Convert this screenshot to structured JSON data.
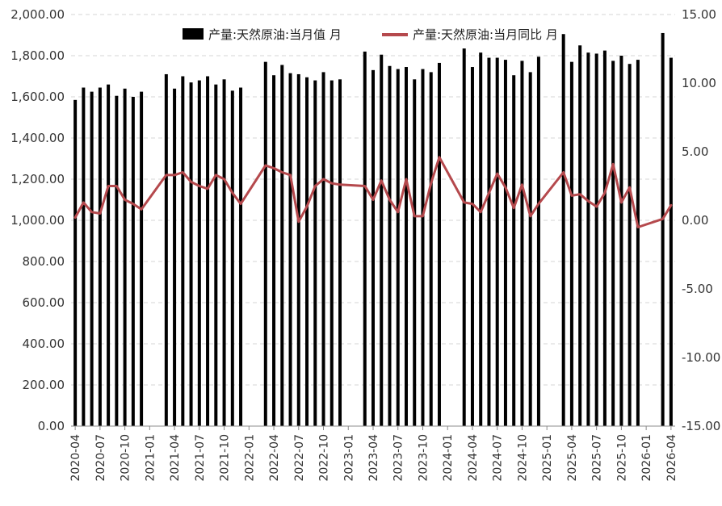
{
  "chart_data": {
    "type": "bar",
    "title": "",
    "legend_position": "top",
    "grid": true,
    "colors": {
      "bar": "#000000",
      "line": "#b5494d",
      "grid": "#d6d6d6"
    },
    "y_left": {
      "min": 0,
      "max": 2000,
      "ticks": [
        0,
        200,
        400,
        600,
        800,
        1000,
        1200,
        1400,
        1600,
        1800,
        2000
      ],
      "tick_labels": [
        "0.00",
        "200.00",
        "400.00",
        "600.00",
        "800.00",
        "1,000.00",
        "1,200.00",
        "1,400.00",
        "1,600.00",
        "1,800.00",
        "2,000.00"
      ]
    },
    "y_right": {
      "min": -15,
      "max": 15,
      "ticks": [
        -15,
        -10,
        -5,
        0,
        5,
        10,
        15
      ],
      "tick_labels": [
        "-15.00",
        "-10.00",
        "-5.00",
        "0.00",
        "5.00",
        "10.00",
        "15.00"
      ]
    },
    "x_tick_labels": [
      "2020-04",
      "2020-07",
      "2020-10",
      "2021-01",
      "2021-04",
      "2021-07",
      "2021-10",
      "2022-01",
      "2022-04",
      "2022-07",
      "2022-10",
      "2023-01",
      "2023-04",
      "2023-07",
      "2023-10",
      "2024-01",
      "2024-04",
      "2024-07",
      "2024-10",
      "2025-01",
      "2025-04",
      "2025-07",
      "2025-10",
      "2026-01",
      "2026-04"
    ],
    "categories": [
      "2020-04",
      "2020-05",
      "2020-06",
      "2020-07",
      "2020-08",
      "2020-09",
      "2020-10",
      "2020-11",
      "2020-12",
      "2021-01",
      "2021-02",
      "2021-03",
      "2021-04",
      "2021-05",
      "2021-06",
      "2021-07",
      "2021-08",
      "2021-09",
      "2021-10",
      "2021-11",
      "2021-12",
      "2022-01",
      "2022-02",
      "2022-03",
      "2022-04",
      "2022-05",
      "2022-06",
      "2022-07",
      "2022-08",
      "2022-09",
      "2022-10",
      "2022-11",
      "2022-12",
      "2023-01",
      "2023-02",
      "2023-03",
      "2023-04",
      "2023-05",
      "2023-06",
      "2023-07",
      "2023-08",
      "2023-09",
      "2023-10",
      "2023-11",
      "2023-12",
      "2024-01",
      "2024-02",
      "2024-03",
      "2024-04",
      "2024-05",
      "2024-06",
      "2024-07",
      "2024-08",
      "2024-09",
      "2024-10",
      "2024-11",
      "2024-12",
      "2025-01",
      "2025-02",
      "2025-03",
      "2025-04",
      "2025-05",
      "2025-06",
      "2025-07",
      "2025-08",
      "2025-09",
      "2025-10",
      "2025-11",
      "2025-12",
      "2026-01",
      "2026-02",
      "2026-03",
      "2026-04"
    ],
    "series": [
      {
        "name": "产量:天然原油:当月值 月",
        "type": "bar",
        "axis": "left",
        "values": [
          1585,
          1645,
          1625,
          1645,
          1660,
          1605,
          1640,
          1600,
          1625,
          null,
          null,
          1710,
          1640,
          1700,
          1670,
          1680,
          1700,
          1660,
          1685,
          1630,
          1645,
          null,
          null,
          1770,
          1705,
          1755,
          1715,
          1710,
          1695,
          1680,
          1720,
          1680,
          1685,
          null,
          null,
          1820,
          1730,
          1805,
          1750,
          1735,
          1745,
          1685,
          1735,
          1720,
          1765,
          null,
          null,
          1835,
          1745,
          1815,
          1790,
          1790,
          1780,
          1705,
          1775,
          1720,
          1795,
          null,
          null,
          1905,
          1770,
          1850,
          1815,
          1810,
          1825,
          1775,
          1800,
          1760,
          1780,
          null,
          null,
          1910,
          1790
        ]
      },
      {
        "name": "产量:天然原油:当月同比 月",
        "type": "line",
        "axis": "right",
        "values": [
          0.2,
          1.3,
          0.6,
          0.5,
          2.5,
          2.5,
          1.5,
          1.2,
          0.8,
          null,
          null,
          3.3,
          3.3,
          3.5,
          2.8,
          2.5,
          2.3,
          3.3,
          3.0,
          2.0,
          1.2,
          null,
          null,
          4.0,
          3.8,
          3.5,
          3.3,
          -0.1,
          1.0,
          2.5,
          3.0,
          2.7,
          2.6,
          null,
          null,
          2.5,
          1.5,
          2.9,
          1.5,
          0.6,
          3.0,
          0.3,
          0.3,
          2.7,
          4.6,
          null,
          null,
          1.3,
          1.2,
          0.6,
          2.0,
          3.4,
          2.4,
          0.9,
          2.6,
          0.3,
          1.2,
          null,
          null,
          3.5,
          1.8,
          1.9,
          1.4,
          1.0,
          2.0,
          4.1,
          1.3,
          2.4,
          -0.5,
          null,
          null,
          0.1,
          1.1
        ]
      }
    ]
  }
}
